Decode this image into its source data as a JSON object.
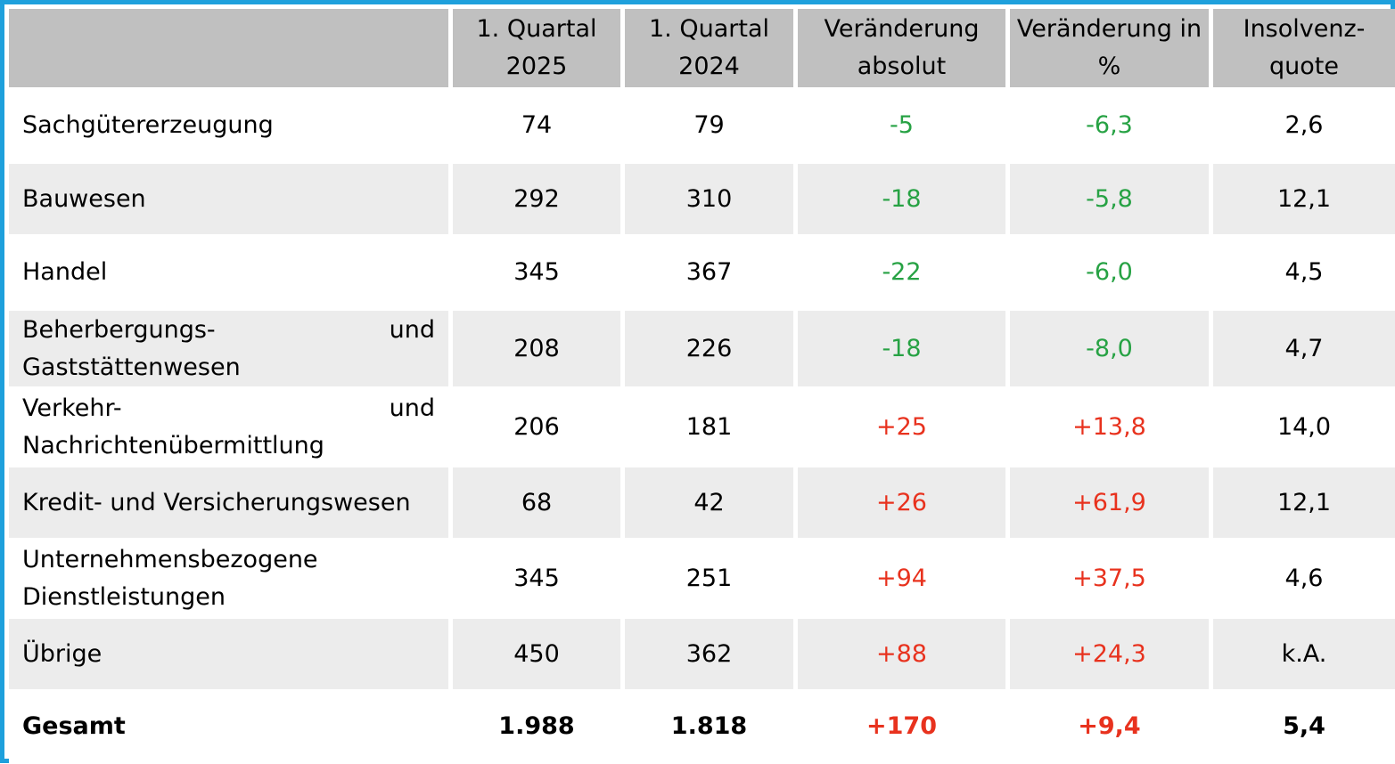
{
  "colors": {
    "border": "#1ea0dc",
    "header_bg": "#c0c0c0",
    "stripe_bg": "#ececec",
    "decrease": "#27a244",
    "increase": "#e8321e"
  },
  "header": {
    "sector": "",
    "q1_2025": "1. Quartal 2025",
    "q1_2024": "1. Quartal 2024",
    "change_abs": "Veränderung absolut",
    "change_pct": "Veränderung in %",
    "rate": "Insolvenz-quote"
  },
  "rows": [
    {
      "sector": "Sachgütererzeugung",
      "q1_2025": "74",
      "q1_2024": "79",
      "change_abs": "-5",
      "change_pct": "-6,3",
      "rate": "2,6"
    },
    {
      "sector": "Bauwesen",
      "q1_2025": "292",
      "q1_2024": "310",
      "change_abs": "-18",
      "change_pct": "-5,8",
      "rate": "12,1"
    },
    {
      "sector": "Handel",
      "q1_2025": "345",
      "q1_2024": "367",
      "change_abs": "-22",
      "change_pct": "-6,0",
      "rate": "4,5"
    },
    {
      "sector": "Beherbergungs- und Gaststättenwesen",
      "q1_2025": "208",
      "q1_2024": "226",
      "change_abs": "-18",
      "change_pct": "-8,0",
      "rate": "4,7"
    },
    {
      "sector": "Verkehr- und Nachrichtenübermittlung",
      "q1_2025": "206",
      "q1_2024": "181",
      "change_abs": "+25",
      "change_pct": "+13,8",
      "rate": "14,0"
    },
    {
      "sector": "Kredit- und Versicherungswesen",
      "q1_2025": "68",
      "q1_2024": "42",
      "change_abs": "+26",
      "change_pct": "+61,9",
      "rate": "12,1"
    },
    {
      "sector": "Unternehmensbezogene Dienstleistungen",
      "q1_2025": "345",
      "q1_2024": "251",
      "change_abs": "+94",
      "change_pct": "+37,5",
      "rate": "4,6"
    },
    {
      "sector": "Übrige",
      "q1_2025": "450",
      "q1_2024": "362",
      "change_abs": "+88",
      "change_pct": "+24,3",
      "rate": "k.A."
    }
  ],
  "total": {
    "sector": "Gesamt",
    "q1_2025": "1.988",
    "q1_2024": "1.818",
    "change_abs": "+170",
    "change_pct": "+9,4",
    "rate": "5,4"
  }
}
